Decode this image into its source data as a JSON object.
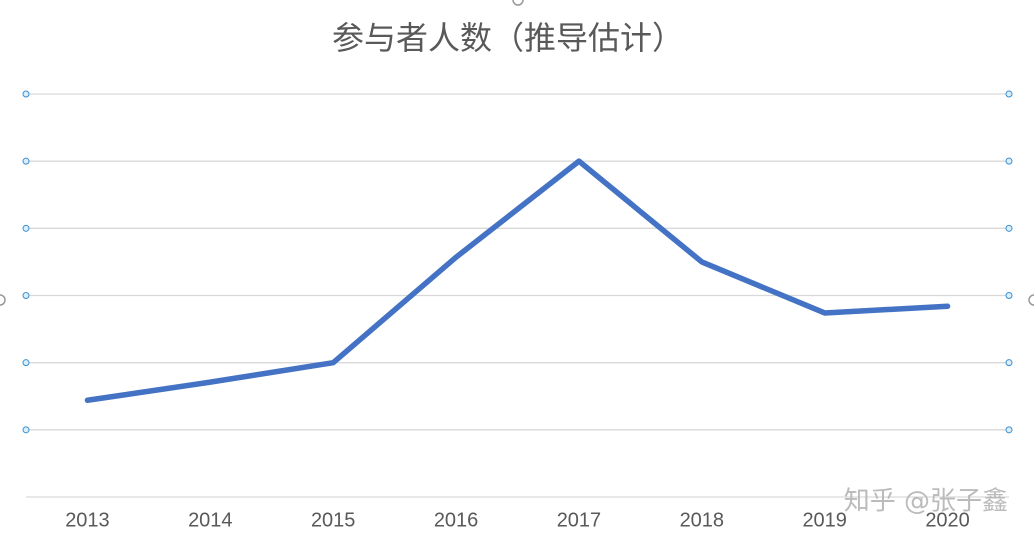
{
  "chart_data": {
    "type": "line",
    "title": "参与者人数（推导估计）",
    "categories": [
      "2013",
      "2014",
      "2015",
      "2016",
      "2017",
      "2018",
      "2019",
      "2020"
    ],
    "series": [
      {
        "name": "参与者人数",
        "color": "#4472c4",
        "values": [
          1.44,
          1.71,
          2.0,
          3.57,
          5.0,
          3.5,
          2.74,
          2.84
        ]
      }
    ],
    "ylim": [
      0,
      6
    ],
    "yticks": [
      0,
      1,
      2,
      3,
      4,
      5,
      6
    ],
    "ytick_labels": false,
    "grid": true,
    "legend": false,
    "watermark": "知乎 @张子鑫"
  }
}
